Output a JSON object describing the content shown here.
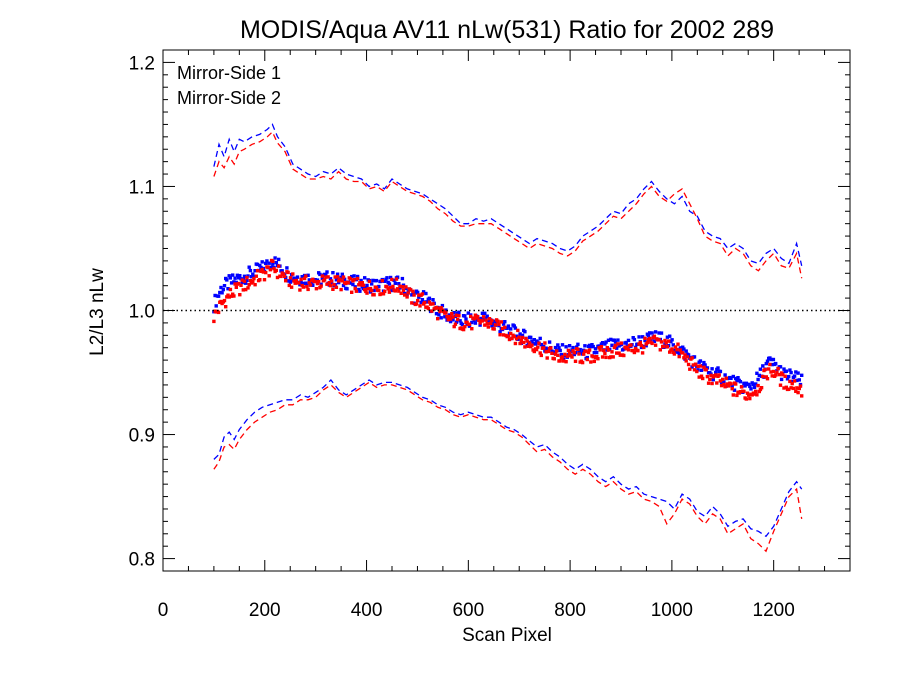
{
  "chart_data": {
    "type": "scatter",
    "title": "MODIS/Aqua AV11 nLw(531) Ratio for 2002 289",
    "xlabel": "Scan Pixel",
    "ylabel": "L2/L3 nLw",
    "xlim": [
      0,
      1350
    ],
    "ylim": [
      0.79,
      1.21
    ],
    "xticks": [
      0,
      200,
      400,
      600,
      800,
      1000,
      1200
    ],
    "xtick_labels": [
      "0",
      "200",
      "400",
      "600",
      "800",
      "1000",
      "1200"
    ],
    "yticks": [
      0.8,
      0.9,
      1.0,
      1.1,
      1.2
    ],
    "ytick_labels": [
      "0.8",
      "0.9",
      "1.0",
      "1.1",
      "1.2"
    ],
    "reference_line": 1.0,
    "grid": false,
    "legend_position": "top-left",
    "colors": {
      "series1": "#0000ff",
      "series2": "#ff0000",
      "axis": "#000000"
    },
    "series": [
      {
        "name": "Mirror-Side 1",
        "color": "#0000ff",
        "mean": {
          "x": [
            100,
            115,
            130,
            150,
            175,
            200,
            215,
            230,
            250,
            275,
            300,
            325,
            350,
            375,
            400,
            425,
            450,
            470,
            490,
            510,
            530,
            550,
            570,
            590,
            610,
            630,
            650,
            670,
            690,
            710,
            730,
            750,
            770,
            790,
            810,
            830,
            850,
            870,
            890,
            910,
            930,
            950,
            970,
            990,
            1010,
            1030,
            1050,
            1070,
            1090,
            1110,
            1130,
            1150,
            1170,
            1190,
            1205,
            1220,
            1240,
            1255
          ],
          "y": [
            1.005,
            1.018,
            1.022,
            1.026,
            1.03,
            1.035,
            1.04,
            1.036,
            1.028,
            1.026,
            1.025,
            1.026,
            1.024,
            1.022,
            1.021,
            1.02,
            1.022,
            1.021,
            1.012,
            1.01,
            1.004,
            0.998,
            0.994,
            0.992,
            0.992,
            0.994,
            0.99,
            0.986,
            0.982,
            0.978,
            0.976,
            0.972,
            0.968,
            0.966,
            0.968,
            0.966,
            0.968,
            0.97,
            0.972,
            0.972,
            0.974,
            0.976,
            0.978,
            0.975,
            0.97,
            0.964,
            0.956,
            0.952,
            0.948,
            0.944,
            0.94,
            0.938,
            0.945,
            0.958,
            0.955,
            0.948,
            0.946,
            0.942
          ]
        },
        "upper": {
          "x": [
            100,
            110,
            120,
            130,
            140,
            150,
            160,
            175,
            190,
            205,
            215,
            225,
            240,
            255,
            270,
            285,
            300,
            315,
            330,
            345,
            360,
            375,
            390,
            405,
            420,
            435,
            450,
            465,
            480,
            495,
            510,
            525,
            540,
            555,
            570,
            585,
            600,
            615,
            630,
            645,
            660,
            675,
            690,
            705,
            720,
            735,
            750,
            765,
            780,
            795,
            810,
            825,
            840,
            855,
            870,
            885,
            900,
            915,
            930,
            945,
            960,
            975,
            990,
            1005,
            1020,
            1035,
            1050,
            1065,
            1080,
            1095,
            1110,
            1125,
            1140,
            1155,
            1170,
            1185,
            1200,
            1215,
            1230,
            1245,
            1255
          ],
          "y": [
            1.116,
            1.134,
            1.124,
            1.138,
            1.128,
            1.138,
            1.136,
            1.14,
            1.142,
            1.146,
            1.15,
            1.14,
            1.132,
            1.118,
            1.114,
            1.11,
            1.108,
            1.112,
            1.11,
            1.115,
            1.11,
            1.108,
            1.106,
            1.1,
            1.102,
            1.098,
            1.106,
            1.102,
            1.098,
            1.096,
            1.094,
            1.09,
            1.086,
            1.082,
            1.076,
            1.07,
            1.07,
            1.074,
            1.072,
            1.074,
            1.07,
            1.066,
            1.062,
            1.058,
            1.054,
            1.058,
            1.056,
            1.054,
            1.05,
            1.048,
            1.052,
            1.06,
            1.064,
            1.068,
            1.074,
            1.08,
            1.078,
            1.086,
            1.09,
            1.098,
            1.104,
            1.096,
            1.09,
            1.086,
            1.092,
            1.08,
            1.076,
            1.064,
            1.06,
            1.058,
            1.05,
            1.054,
            1.05,
            1.04,
            1.038,
            1.046,
            1.05,
            1.042,
            1.038,
            1.054,
            1.036
          ]
        },
        "lower": {
          "x": [
            100,
            110,
            120,
            130,
            140,
            150,
            165,
            180,
            195,
            210,
            225,
            240,
            255,
            270,
            285,
            300,
            315,
            330,
            345,
            360,
            375,
            390,
            405,
            420,
            435,
            450,
            465,
            480,
            495,
            510,
            525,
            540,
            555,
            570,
            585,
            600,
            615,
            630,
            645,
            660,
            675,
            690,
            705,
            720,
            735,
            750,
            765,
            780,
            795,
            810,
            825,
            840,
            855,
            870,
            885,
            900,
            915,
            930,
            945,
            960,
            975,
            990,
            1005,
            1020,
            1035,
            1050,
            1065,
            1080,
            1095,
            1110,
            1125,
            1140,
            1155,
            1170,
            1185,
            1200,
            1215,
            1230,
            1245,
            1255
          ],
          "y": [
            0.88,
            0.884,
            0.898,
            0.902,
            0.896,
            0.904,
            0.912,
            0.918,
            0.922,
            0.924,
            0.926,
            0.928,
            0.928,
            0.932,
            0.93,
            0.934,
            0.938,
            0.944,
            0.936,
            0.932,
            0.936,
            0.94,
            0.944,
            0.94,
            0.942,
            0.942,
            0.94,
            0.938,
            0.934,
            0.93,
            0.928,
            0.924,
            0.922,
            0.918,
            0.916,
            0.918,
            0.916,
            0.914,
            0.914,
            0.91,
            0.906,
            0.904,
            0.9,
            0.895,
            0.89,
            0.892,
            0.886,
            0.882,
            0.876,
            0.872,
            0.876,
            0.872,
            0.866,
            0.862,
            0.866,
            0.86,
            0.856,
            0.858,
            0.852,
            0.85,
            0.848,
            0.846,
            0.84,
            0.852,
            0.848,
            0.838,
            0.834,
            0.842,
            0.836,
            0.826,
            0.83,
            0.832,
            0.824,
            0.822,
            0.818,
            0.826,
            0.84,
            0.854,
            0.862,
            0.856
          ]
        }
      },
      {
        "name": "Mirror-Side 2",
        "color": "#ff0000",
        "mean": {
          "x": [
            100,
            115,
            130,
            150,
            175,
            200,
            215,
            230,
            250,
            275,
            300,
            325,
            350,
            375,
            400,
            425,
            450,
            470,
            490,
            510,
            530,
            550,
            570,
            590,
            610,
            630,
            650,
            670,
            690,
            710,
            730,
            750,
            770,
            790,
            810,
            830,
            850,
            870,
            890,
            910,
            930,
            950,
            970,
            990,
            1010,
            1030,
            1050,
            1070,
            1090,
            1110,
            1130,
            1150,
            1170,
            1190,
            1205,
            1220,
            1240,
            1255
          ],
          "y": [
            0.995,
            1.005,
            1.012,
            1.018,
            1.024,
            1.03,
            1.035,
            1.03,
            1.024,
            1.022,
            1.022,
            1.023,
            1.022,
            1.02,
            1.019,
            1.018,
            1.02,
            1.019,
            1.01,
            1.008,
            1.002,
            0.996,
            0.992,
            0.99,
            0.99,
            0.992,
            0.988,
            0.984,
            0.98,
            0.975,
            0.972,
            0.968,
            0.963,
            0.962,
            0.964,
            0.962,
            0.964,
            0.966,
            0.968,
            0.968,
            0.97,
            0.972,
            0.974,
            0.972,
            0.968,
            0.96,
            0.952,
            0.947,
            0.943,
            0.939,
            0.935,
            0.932,
            0.938,
            0.952,
            0.95,
            0.942,
            0.94,
            0.936
          ]
        },
        "upper": {
          "x": [
            100,
            110,
            120,
            130,
            140,
            150,
            160,
            175,
            190,
            205,
            215,
            225,
            240,
            255,
            270,
            285,
            300,
            315,
            330,
            345,
            360,
            375,
            390,
            405,
            420,
            435,
            450,
            465,
            480,
            495,
            510,
            525,
            540,
            555,
            570,
            585,
            600,
            615,
            630,
            645,
            660,
            675,
            690,
            705,
            720,
            735,
            750,
            765,
            780,
            795,
            810,
            825,
            840,
            855,
            870,
            885,
            900,
            915,
            930,
            945,
            960,
            975,
            990,
            1005,
            1020,
            1035,
            1050,
            1065,
            1080,
            1095,
            1110,
            1125,
            1140,
            1155,
            1170,
            1185,
            1200,
            1215,
            1230,
            1245,
            1255
          ],
          "y": [
            1.108,
            1.12,
            1.115,
            1.124,
            1.118,
            1.128,
            1.13,
            1.134,
            1.136,
            1.14,
            1.144,
            1.135,
            1.128,
            1.114,
            1.11,
            1.106,
            1.106,
            1.108,
            1.106,
            1.112,
            1.106,
            1.104,
            1.104,
            1.098,
            1.1,
            1.096,
            1.104,
            1.1,
            1.096,
            1.094,
            1.092,
            1.088,
            1.082,
            1.078,
            1.072,
            1.068,
            1.068,
            1.07,
            1.07,
            1.07,
            1.066,
            1.062,
            1.058,
            1.054,
            1.05,
            1.054,
            1.052,
            1.05,
            1.046,
            1.044,
            1.048,
            1.056,
            1.06,
            1.064,
            1.07,
            1.076,
            1.074,
            1.08,
            1.086,
            1.094,
            1.1,
            1.092,
            1.088,
            1.094,
            1.098,
            1.086,
            1.074,
            1.06,
            1.056,
            1.054,
            1.044,
            1.05,
            1.046,
            1.036,
            1.032,
            1.04,
            1.046,
            1.036,
            1.034,
            1.046,
            1.026
          ]
        },
        "lower": {
          "x": [
            100,
            110,
            120,
            130,
            140,
            150,
            165,
            180,
            195,
            210,
            225,
            240,
            255,
            270,
            285,
            300,
            315,
            330,
            345,
            360,
            375,
            390,
            405,
            420,
            435,
            450,
            465,
            480,
            495,
            510,
            525,
            540,
            555,
            570,
            585,
            600,
            615,
            630,
            645,
            660,
            675,
            690,
            705,
            720,
            735,
            750,
            765,
            780,
            795,
            810,
            825,
            840,
            855,
            870,
            885,
            900,
            915,
            930,
            945,
            960,
            975,
            990,
            1005,
            1020,
            1035,
            1050,
            1065,
            1080,
            1095,
            1110,
            1125,
            1140,
            1155,
            1170,
            1185,
            1200,
            1215,
            1230,
            1245,
            1255
          ],
          "y": [
            0.872,
            0.878,
            0.89,
            0.892,
            0.888,
            0.896,
            0.904,
            0.91,
            0.914,
            0.918,
            0.92,
            0.924,
            0.924,
            0.928,
            0.928,
            0.93,
            0.936,
            0.94,
            0.934,
            0.93,
            0.934,
            0.938,
            0.942,
            0.938,
            0.94,
            0.94,
            0.938,
            0.936,
            0.932,
            0.928,
            0.926,
            0.922,
            0.92,
            0.916,
            0.914,
            0.916,
            0.914,
            0.912,
            0.912,
            0.908,
            0.904,
            0.902,
            0.898,
            0.892,
            0.886,
            0.888,
            0.882,
            0.878,
            0.872,
            0.868,
            0.872,
            0.868,
            0.862,
            0.858,
            0.862,
            0.856,
            0.852,
            0.854,
            0.848,
            0.846,
            0.842,
            0.828,
            0.836,
            0.848,
            0.844,
            0.834,
            0.828,
            0.836,
            0.832,
            0.82,
            0.824,
            0.828,
            0.816,
            0.812,
            0.806,
            0.822,
            0.836,
            0.85,
            0.856,
            0.832
          ]
        }
      }
    ]
  }
}
